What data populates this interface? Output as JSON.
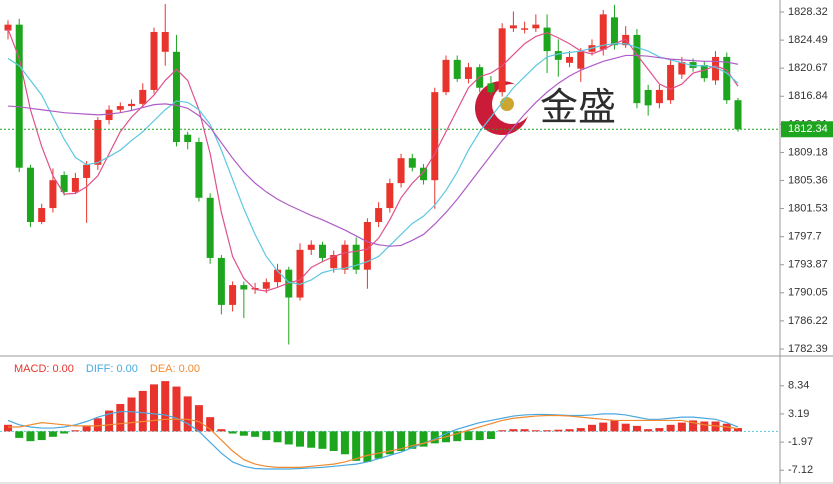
{
  "chart_data": [
    {
      "type": "candlestick",
      "watermark": "金盛",
      "up_color": "#e8342c",
      "down_color": "#1ea51e",
      "open": [
        1825.8,
        1826.6,
        1807.1,
        1799.7,
        1801.6,
        1806.1,
        1803.8,
        1805.7,
        1807.5,
        1813.6,
        1815.0,
        1815.5,
        1815.8,
        1817.7,
        1822.9,
        1822.9,
        1811.6,
        1810.6,
        1803.0,
        1794.8,
        1788.4,
        1791.1,
        1790.5,
        1790.6,
        1791.5,
        1793.2,
        1789.4,
        1795.9,
        1796.6,
        1793.4,
        1793.2,
        1796.6,
        1793.2,
        1799.7,
        1801.6,
        1805.0,
        1808.4,
        1807.1,
        1805.4,
        1817.4,
        1821.8,
        1819.2,
        1820.8,
        1818.6,
        1817.4,
        1826.1,
        1825.9,
        1826.1,
        1826.2,
        1823.0,
        1821.4,
        1820.6,
        1822.9,
        1823.2,
        1827.6,
        1823.8,
        1825.2,
        1817.7,
        1815.9,
        1816.3,
        1819.8,
        1821.5,
        1821.1,
        1819.0,
        1822.2,
        1816.3
      ],
      "close": [
        1826.6,
        1807.1,
        1799.7,
        1801.6,
        1805.4,
        1803.8,
        1805.7,
        1807.5,
        1813.6,
        1815.0,
        1815.5,
        1815.8,
        1817.7,
        1825.6,
        1825.6,
        1810.6,
        1810.6,
        1803.0,
        1794.8,
        1788.4,
        1791.1,
        1790.5,
        1790.7,
        1791.5,
        1793.2,
        1789.4,
        1795.9,
        1796.6,
        1794.8,
        1795.2,
        1796.6,
        1793.2,
        1799.7,
        1801.6,
        1805.0,
        1808.4,
        1807.1,
        1805.4,
        1817.4,
        1821.8,
        1819.2,
        1820.8,
        1818.0,
        1817.4,
        1826.1,
        1826.5,
        1826.1,
        1826.6,
        1823.0,
        1821.8,
        1822.2,
        1822.9,
        1823.8,
        1828.0,
        1823.8,
        1825.2,
        1815.9,
        1815.6,
        1817.7,
        1821.1,
        1821.5,
        1820.7,
        1819.3,
        1822.2,
        1816.3,
        1812.34
      ],
      "high": [
        1827.2,
        1827.4,
        1807.5,
        1802.2,
        1807.0,
        1806.6,
        1806.4,
        1808.0,
        1814.0,
        1815.6,
        1816.0,
        1816.4,
        1818.6,
        1826.2,
        1829.4,
        1825.2,
        1812.0,
        1811.2,
        1803.6,
        1795.2,
        1791.6,
        1791.6,
        1791.4,
        1792.0,
        1794.0,
        1793.6,
        1796.8,
        1797.2,
        1797.0,
        1795.8,
        1797.2,
        1797.6,
        1800.2,
        1802.4,
        1805.6,
        1809.0,
        1809.0,
        1807.6,
        1818.0,
        1822.4,
        1822.4,
        1821.4,
        1821.2,
        1819.6,
        1826.8,
        1828.4,
        1827.0,
        1828.0,
        1828.0,
        1824.6,
        1823.0,
        1823.4,
        1824.6,
        1828.6,
        1829.3,
        1826.4,
        1826.0,
        1818.4,
        1818.4,
        1821.8,
        1822.2,
        1822.0,
        1821.6,
        1823.0,
        1822.8,
        1816.6
      ],
      "low": [
        1824.6,
        1806.5,
        1799.0,
        1799.4,
        1801.0,
        1803.3,
        1803.5,
        1799.6,
        1806.8,
        1813.0,
        1814.6,
        1815.0,
        1815.3,
        1817.2,
        1821.0,
        1810.0,
        1809.6,
        1802.5,
        1794.0,
        1787.1,
        1787.5,
        1786.6,
        1789.9,
        1790.0,
        1790.8,
        1783.0,
        1789.0,
        1795.2,
        1794.2,
        1792.8,
        1792.6,
        1792.6,
        1790.6,
        1799.0,
        1801.0,
        1804.4,
        1806.6,
        1804.8,
        1801.5,
        1817.0,
        1818.8,
        1818.6,
        1817.4,
        1817.0,
        1816.8,
        1825.6,
        1825.4,
        1825.6,
        1820.0,
        1819.5,
        1820.8,
        1818.8,
        1822.4,
        1822.4,
        1823.2,
        1823.4,
        1815.2,
        1814.2,
        1815.2,
        1815.8,
        1819.2,
        1820.2,
        1818.8,
        1818.4,
        1815.8,
        1812.0
      ],
      "lines": [
        {
          "color": "#e0508c",
          "values": [
            1826,
            1822,
            1815,
            1810,
            1806,
            1803.5,
            1803.6,
            1804.5,
            1806,
            1809,
            1812,
            1814,
            1815.5,
            1817,
            1819,
            1820.5,
            1819,
            1815,
            1809,
            1801,
            1795,
            1792,
            1790.5,
            1790.3,
            1790.8,
            1791.4,
            1791.8,
            1793.5,
            1794.3,
            1795,
            1795.5,
            1795.7,
            1796,
            1797.5,
            1800,
            1803,
            1805,
            1806.5,
            1809,
            1812,
            1815,
            1818,
            1819.5,
            1820,
            1821,
            1822.5,
            1824,
            1825,
            1825.5,
            1824.8,
            1824,
            1823,
            1822.6,
            1823.2,
            1824,
            1824.6,
            1822.5,
            1820.5,
            1818.5,
            1817.8,
            1818.5,
            1820,
            1820.4,
            1821,
            1820.4,
            1818.2
          ]
        },
        {
          "color": "#5cc8e0",
          "values": [
            1822,
            1821,
            1819,
            1817,
            1814,
            1811,
            1808.5,
            1807.5,
            1807.8,
            1808.6,
            1809.5,
            1810.8,
            1812,
            1813.5,
            1815,
            1816.2,
            1816,
            1815,
            1813,
            1809.5,
            1805.5,
            1801.5,
            1798,
            1795,
            1793,
            1791.5,
            1791.2,
            1791.8,
            1792.8,
            1793.2,
            1793.4,
            1793.8,
            1794.3,
            1795,
            1796.5,
            1798,
            1799.5,
            1800.5,
            1802,
            1804,
            1806.5,
            1809.5,
            1812,
            1814,
            1816,
            1818,
            1819.5,
            1821,
            1822.2,
            1822.6,
            1822.8,
            1823,
            1823.4,
            1823.8,
            1824,
            1824,
            1823.5,
            1823,
            1822.2,
            1821.8,
            1821.4,
            1821,
            1821,
            1820.8,
            1820,
            1818.6
          ]
        },
        {
          "color": "#b05cc8",
          "values": [
            1815.5,
            1815.4,
            1815.2,
            1815,
            1814.8,
            1814.6,
            1814.5,
            1814.4,
            1814.3,
            1814.4,
            1814.6,
            1814.9,
            1815.3,
            1815.7,
            1815.8,
            1815.6,
            1815.2,
            1814.2,
            1812.6,
            1810.5,
            1808.4,
            1806.5,
            1805,
            1803.8,
            1802.8,
            1802,
            1801.3,
            1800.6,
            1800,
            1799.3,
            1798.6,
            1797.8,
            1797,
            1796.6,
            1796.4,
            1796.5,
            1797.2,
            1798,
            1799.4,
            1801,
            1802.8,
            1804.8,
            1806.8,
            1808.8,
            1810.8,
            1812.6,
            1814.4,
            1816,
            1817.4,
            1818.6,
            1819.6,
            1820.4,
            1821,
            1821.6,
            1822,
            1822.4,
            1822.4,
            1822.3,
            1822.1,
            1821.9,
            1821.8,
            1821.7,
            1821.6,
            1821.6,
            1821.5,
            1821.2
          ]
        }
      ],
      "last_price": 1812.34,
      "ylim": [
        1781.57,
        1829.96
      ],
      "yticks": [
        1828.32,
        1824.49,
        1820.67,
        1816.84,
        1813.01,
        1809.18,
        1805.36,
        1801.53,
        1797.7,
        1793.87,
        1790.05,
        1786.22,
        1782.39
      ]
    },
    {
      "type": "macd",
      "up_color": "#e8342c",
      "down_color": "#1ea51e",
      "series": [
        {
          "name": "MACD: 0.00",
          "color": "#e8342c",
          "values": [
            1.2,
            -1.2,
            -1.8,
            -1.6,
            -1.0,
            -0.4,
            0.2,
            1.0,
            2.4,
            3.8,
            5.0,
            6.2,
            7.4,
            8.6,
            9.2,
            8.2,
            6.4,
            4.8,
            2.6,
            0.4,
            -0.4,
            -0.8,
            -1.0,
            -1.6,
            -2.0,
            -2.4,
            -2.8,
            -3.0,
            -3.2,
            -3.6,
            -4.2,
            -5.4,
            -5.6,
            -5.0,
            -4.2,
            -3.6,
            -3.2,
            -2.8,
            -2.2,
            -2.0,
            -1.8,
            -1.6,
            -1.6,
            -1.4,
            0.2,
            0.4,
            0.4,
            0.2,
            0.2,
            0.3,
            0.4,
            0.6,
            1.2,
            1.6,
            2.0,
            1.4,
            1.0,
            0.4,
            0.6,
            1.2,
            1.6,
            2.0,
            1.8,
            1.8,
            1.4,
            0.6
          ]
        },
        {
          "name": "DIFF: 0.00",
          "color": "#4aa8e0",
          "values": [
            2.0,
            1.2,
            0.8,
            0.6,
            0.6,
            0.8,
            1.2,
            1.8,
            2.6,
            3.2,
            3.6,
            3.6,
            3.4,
            3.2,
            3.0,
            2.4,
            1.4,
            0.0,
            -2.0,
            -4.0,
            -5.6,
            -6.4,
            -6.8,
            -6.9,
            -6.9,
            -6.9,
            -6.8,
            -6.7,
            -6.6,
            -6.4,
            -6.2,
            -6.0,
            -5.6,
            -5.0,
            -4.4,
            -3.8,
            -3.0,
            -2.2,
            -1.4,
            -0.4,
            0.4,
            1.0,
            1.6,
            2.0,
            2.4,
            2.8,
            3.0,
            3.1,
            3.1,
            3.0,
            2.9,
            2.9,
            3.0,
            3.2,
            3.2,
            3.0,
            2.6,
            2.2,
            2.2,
            2.4,
            2.6,
            2.6,
            2.4,
            2.2,
            1.6,
            0.8
          ]
        },
        {
          "name": "DEA: 0.00",
          "color": "#f08a30",
          "values": [
            0.8,
            0.8,
            1.2,
            1.6,
            1.4,
            1.2,
            1.0,
            1.0,
            1.0,
            1.2,
            1.4,
            1.6,
            1.8,
            2.0,
            2.2,
            2.2,
            2.2,
            1.8,
            0.4,
            -1.6,
            -3.6,
            -5.2,
            -6.0,
            -6.4,
            -6.6,
            -6.6,
            -6.6,
            -6.4,
            -6.2,
            -6.0,
            -5.6,
            -5.0,
            -4.4,
            -4.0,
            -3.6,
            -3.2,
            -2.6,
            -2.2,
            -1.6,
            -1.0,
            -0.4,
            0.2,
            0.8,
            1.4,
            2.0,
            2.4,
            2.6,
            2.8,
            2.9,
            2.9,
            2.8,
            2.6,
            2.4,
            2.2,
            2.0,
            2.0,
            2.0,
            2.0,
            2.0,
            2.0,
            2.0,
            1.6,
            1.2,
            1.0,
            0.8,
            0.5
          ]
        }
      ],
      "ylim": [
        -8.91,
        13.43
      ],
      "yticks": [
        8.34,
        3.19,
        -1.97,
        -7.12
      ]
    }
  ]
}
